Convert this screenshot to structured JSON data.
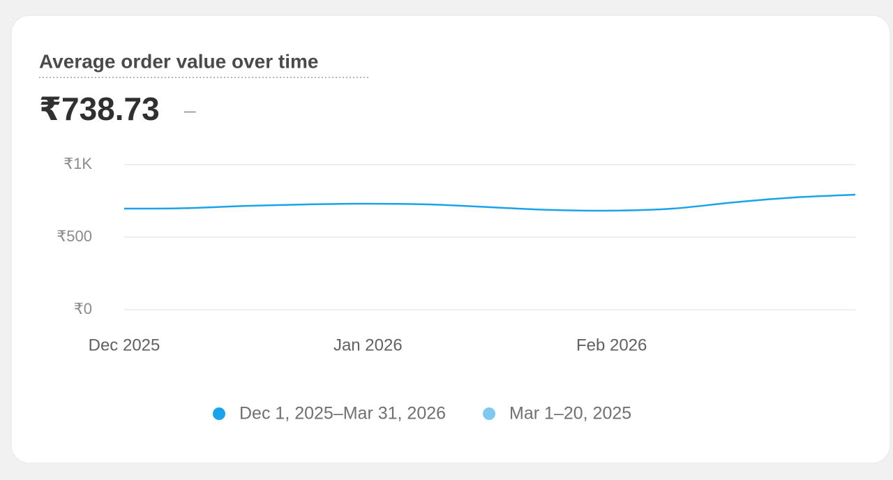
{
  "chart_data": {
    "type": "line",
    "title": "Average order value over time",
    "headline": "₹738.73",
    "headline_change": "–",
    "categories": [
      "Dec 2025",
      null,
      null,
      null,
      "Jan 2026",
      null,
      null,
      null,
      "Feb 2026",
      null,
      null,
      null,
      null
    ],
    "series": [
      {
        "name": "Dec 1, 2025–Mar 31, 2026",
        "color": "#1aa3ea",
        "values": [
          697,
          700,
          716,
          726,
          731,
          726,
          707,
          688,
          683,
          697,
          740,
          774,
          793
        ]
      },
      {
        "name": "Mar 1–20, 2025",
        "color": "#7fc8f0",
        "values": [
          null,
          null,
          null,
          null,
          null,
          null,
          null,
          null,
          null,
          null,
          null,
          null,
          null
        ]
      }
    ],
    "ylim": [
      0,
      1000
    ],
    "yticks": [
      {
        "value": 0,
        "label": "₹0"
      },
      {
        "value": 500,
        "label": "₹500"
      },
      {
        "value": 1000,
        "label": "₹1K"
      }
    ],
    "grid": true
  }
}
